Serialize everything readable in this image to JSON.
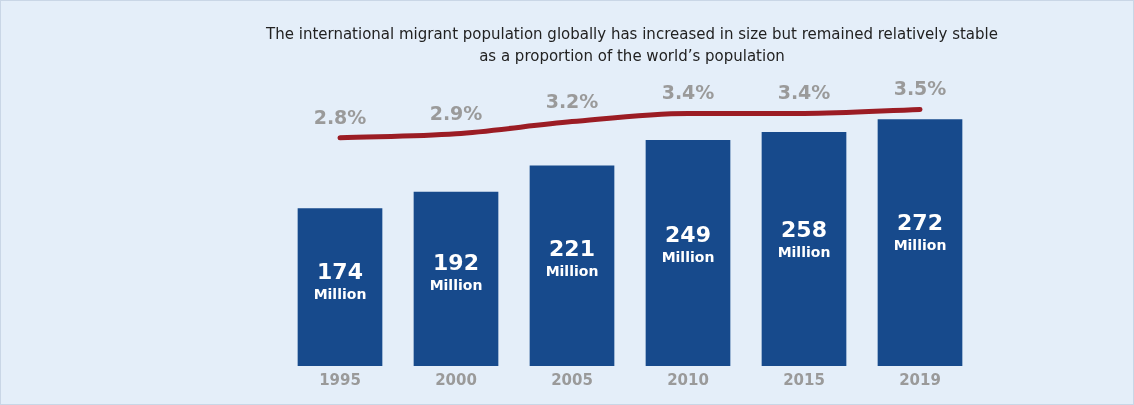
{
  "chart_data": {
    "type": "bar",
    "title": "The international migrant population globally has increased in size but remained relatively stable as a proportion of the world’s population",
    "categories": [
      "1995",
      "2000",
      "2005",
      "2010",
      "2015",
      "2019"
    ],
    "series": [
      {
        "color": "#174a8c",
        "values": [
          174,
          192,
          221,
          249,
          258,
          272
        ],
        "value_labels": [
          "174 Million",
          "192 Million",
          "221 Million",
          "249 Million",
          "258 Million",
          "272 Million"
        ]
      },
      {
        "type": "line",
        "axis": "y2",
        "color": "#9b1c24",
        "values": [
          2.8,
          2.9,
          3.2,
          3.4,
          3.4,
          3.5
        ],
        "value_labels": [
          "2.8%",
          "2.9%",
          "3.2%",
          "3.4%",
          "3.4%",
          "3.5%"
        ]
      }
    ],
    "tick_labels": "x",
    "grid": false,
    "legend": false,
    "marker": "none"
  }
}
